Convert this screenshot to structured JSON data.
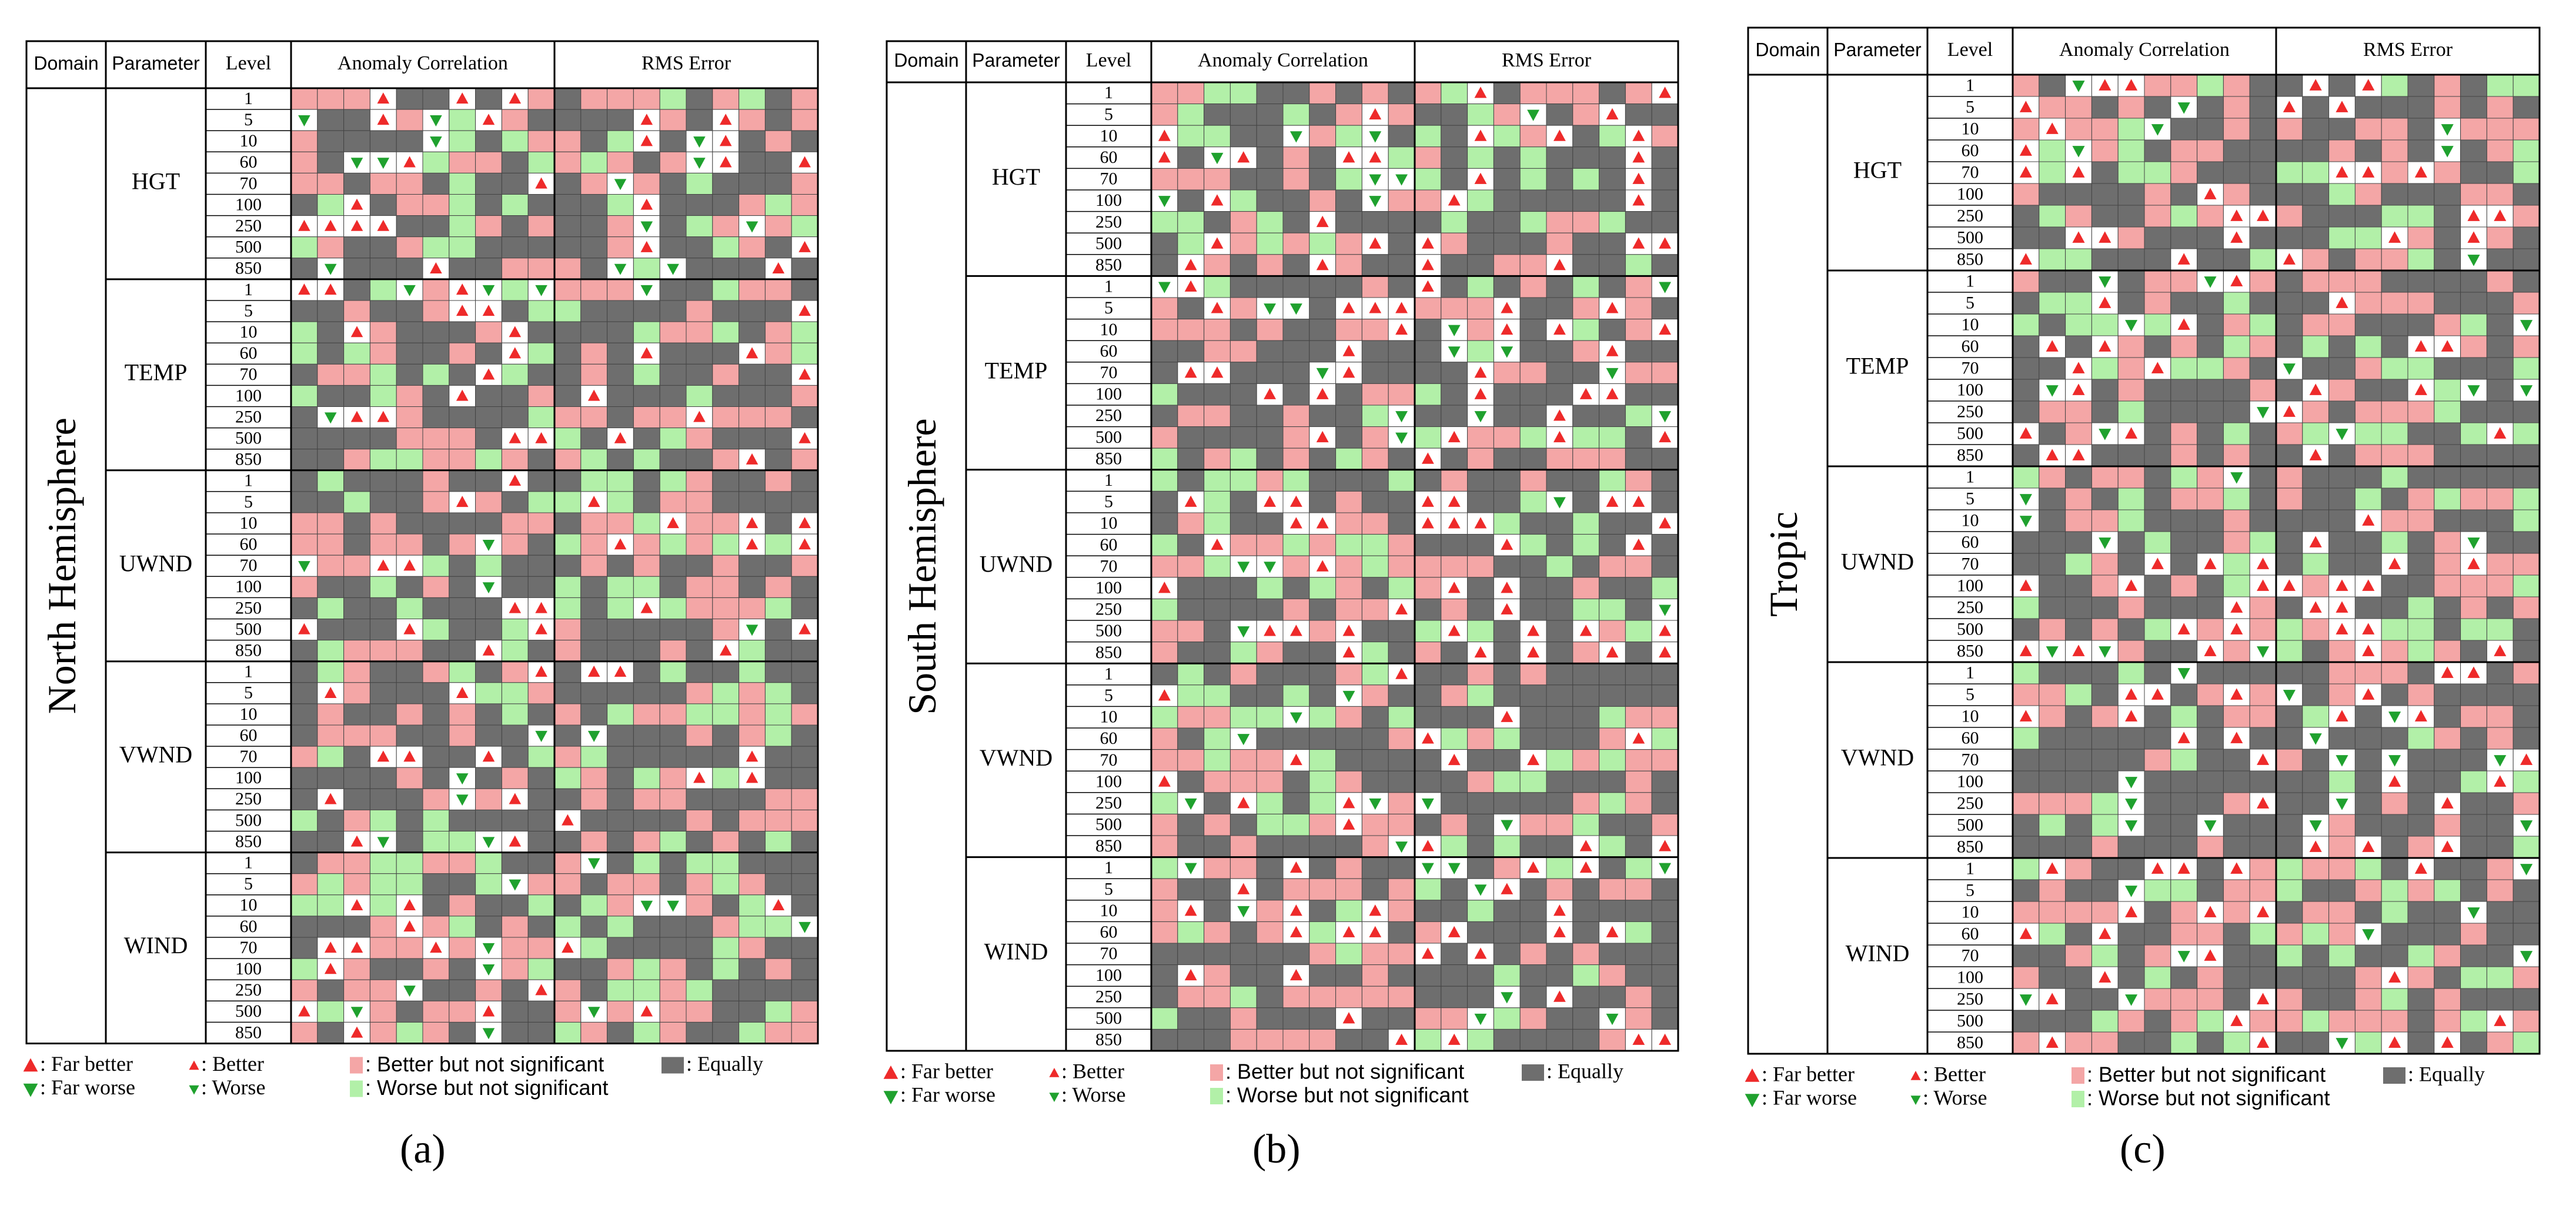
{
  "headers": {
    "domain": "Domain",
    "parameter": "Parameter",
    "level": "Level",
    "anomaly_correlation": "Anomaly Correlation",
    "rms_error": "RMS Error"
  },
  "legend": {
    "far_better": ": Far better",
    "far_worse": ": Far worse",
    "better": ": Better",
    "worse": ": Worse",
    "better_ns": ": Better but not significant",
    "worse_ns": ": Worse but not significant",
    "equally": ": Equally"
  },
  "colors": {
    "better_ns": "#f4a6a6",
    "worse_ns": "#b2f0a8",
    "equally": "#6e6e6e",
    "marker_better": "#ee2a2a",
    "marker_worse": "#1fa12e",
    "grid": "#000000"
  },
  "chart_data": [
    {
      "type": "table",
      "panel": "(a)",
      "domain": "North Hemisphere",
      "parameters": [
        "HGT",
        "TEMP",
        "UWND",
        "VWND",
        "WIND"
      ],
      "levels": [
        "1",
        "5",
        "10",
        "60",
        "70",
        "100",
        "250",
        "500",
        "850"
      ],
      "columns_per_metric": 10,
      "seed": 11
    },
    {
      "type": "table",
      "panel": "(b)",
      "domain": "South Hemisphere",
      "parameters": [
        "HGT",
        "TEMP",
        "UWND",
        "VWND",
        "WIND"
      ],
      "levels": [
        "1",
        "5",
        "10",
        "60",
        "70",
        "100",
        "250",
        "500",
        "850"
      ],
      "columns_per_metric": 10,
      "seed": 23
    },
    {
      "type": "table",
      "panel": "(c)",
      "domain": "Tropic",
      "parameters": [
        "HGT",
        "TEMP",
        "UWND",
        "VWND",
        "WIND"
      ],
      "levels": [
        "1",
        "5",
        "10",
        "60",
        "70",
        "100",
        "250",
        "500",
        "850"
      ],
      "columns_per_metric": 10,
      "seed": 37
    }
  ]
}
